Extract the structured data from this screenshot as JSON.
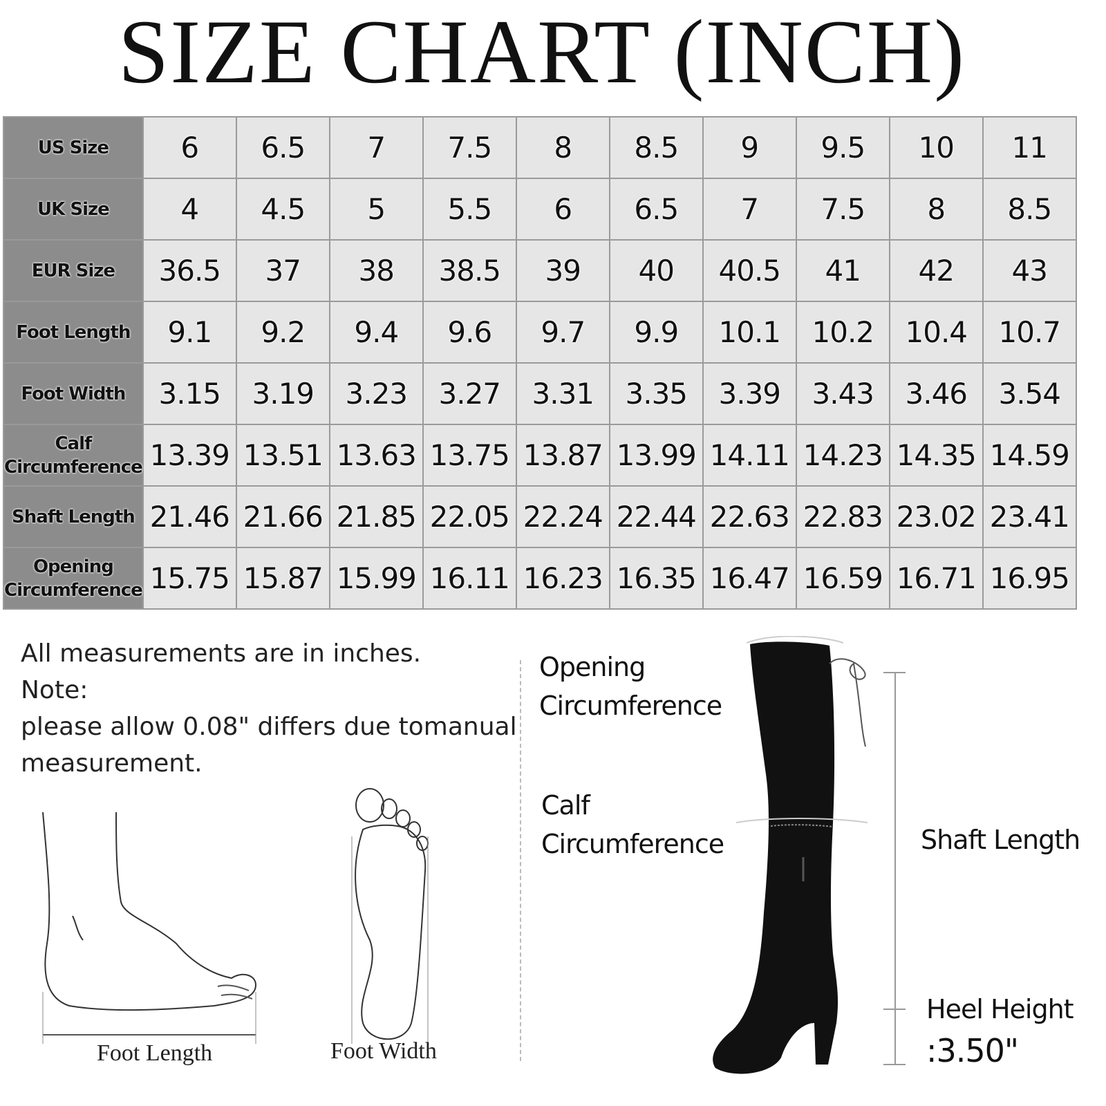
{
  "title": "SIZE CHART (INCH)",
  "chart_data": {
    "type": "table",
    "title": "SIZE CHART (INCH)",
    "rows": [
      {
        "label": "US Size",
        "values": [
          "6",
          "6.5",
          "7",
          "7.5",
          "8",
          "8.5",
          "9",
          "9.5",
          "10",
          "11"
        ]
      },
      {
        "label": "UK Size",
        "values": [
          "4",
          "4.5",
          "5",
          "5.5",
          "6",
          "6.5",
          "7",
          "7.5",
          "8",
          "8.5"
        ]
      },
      {
        "label": "EUR Size",
        "values": [
          "36.5",
          "37",
          "38",
          "38.5",
          "39",
          "40",
          "40.5",
          "41",
          "42",
          "43"
        ]
      },
      {
        "label": "Foot Length",
        "values": [
          "9.1",
          "9.2",
          "9.4",
          "9.6",
          "9.7",
          "9.9",
          "10.1",
          "10.2",
          "10.4",
          "10.7"
        ]
      },
      {
        "label": "Foot Width",
        "values": [
          "3.15",
          "3.19",
          "3.23",
          "3.27",
          "3.31",
          "3.35",
          "3.39",
          "3.43",
          "3.46",
          "3.54"
        ]
      },
      {
        "label": "Calf Circumference",
        "values": [
          "13.39",
          "13.51",
          "13.63",
          "13.75",
          "13.87",
          "13.99",
          "14.11",
          "14.23",
          "14.35",
          "14.59"
        ]
      },
      {
        "label": "Shaft Length",
        "values": [
          "21.46",
          "21.66",
          "21.85",
          "22.05",
          "22.24",
          "22.44",
          "22.63",
          "22.83",
          "23.02",
          "23.41"
        ]
      },
      {
        "label": "Opening Circumference",
        "values": [
          "15.75",
          "15.87",
          "15.99",
          "16.11",
          "16.23",
          "16.35",
          "16.47",
          "16.59",
          "16.71",
          "16.95"
        ]
      }
    ],
    "colors": {
      "header_cell": "#8c8c8c",
      "value_cell": "#e6e6e6",
      "grid": "#9a9a9a"
    }
  },
  "notes": {
    "line1": "All measurements are in inches.",
    "line2": "Note:",
    "line3": "please allow 0.08\" differs due tomanual",
    "line4": "measurement."
  },
  "diagram": {
    "foot_length": "Foot Length",
    "foot_width": "Foot Width",
    "opening_1": "Opening",
    "opening_2": "Circumference",
    "calf_1": "Calf",
    "calf_2": "Circumference",
    "shaft_length": "Shaft Length",
    "heel_1": "Heel Height",
    "heel_2": ":3.50\""
  }
}
